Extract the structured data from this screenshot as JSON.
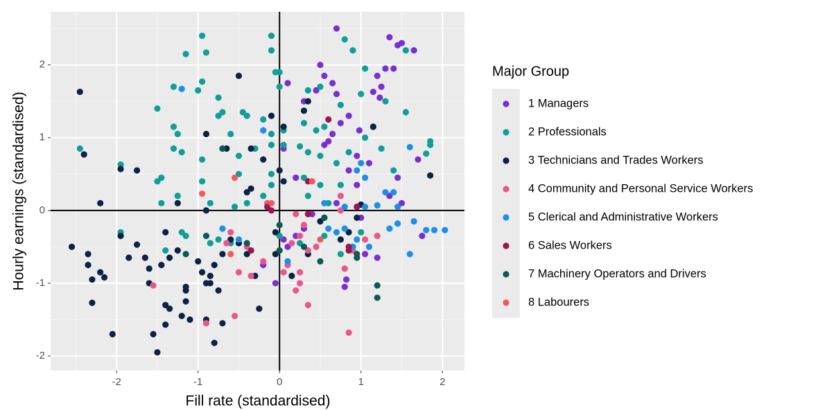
{
  "chart_data": {
    "type": "scatter",
    "x_label": "Fill rate (standardised)",
    "y_label": "Hourly earnings (standardised)",
    "legend_title": "Major Group",
    "legend": "right",
    "grid": true,
    "xlim": [
      -2.81,
      2.27
    ],
    "ylim": [
      -2.2,
      2.73
    ],
    "xticks": [
      -2,
      -1,
      0,
      1,
      2
    ],
    "yticks": [
      -2,
      -1,
      0,
      1,
      2
    ],
    "series": [
      {
        "name": "1 Managers",
        "color": "#7b2fd0",
        "x": [
          0.7,
          1.35,
          1.5,
          1.45,
          1.65,
          1.3,
          1.4,
          1.2,
          1.25,
          1.15,
          1.23,
          0.5,
          0.55,
          0.65,
          0.7,
          0.1,
          0.45,
          0.3,
          0.85,
          0.75,
          0.98,
          0.65,
          0.6,
          0.55,
          0.05,
          1.45,
          1.35,
          1.5,
          1.7,
          1.1,
          0.95,
          0.7,
          0.95,
          1.0,
          0.4,
          0.3,
          0.2,
          0.05,
          0.1,
          -0.2,
          -0.05,
          0.8,
          0.82,
          1.05,
          1.2,
          1.75,
          0.85,
          0.2,
          0.95
        ],
        "y": [
          2.5,
          2.38,
          2.3,
          2.27,
          2.2,
          1.95,
          1.95,
          1.85,
          1.7,
          1.63,
          1.55,
          2.0,
          1.85,
          1.75,
          1.6,
          1.75,
          1.65,
          1.5,
          1.3,
          1.2,
          1.1,
          1.05,
          0.95,
          0.9,
          0.85,
          0.45,
          0.2,
          0.1,
          0.7,
          0.65,
          0.35,
          0.1,
          0.05,
          -0.1,
          -0.05,
          -0.25,
          -0.35,
          -0.4,
          -0.5,
          -0.75,
          -1.0,
          -1.05,
          -0.95,
          -0.6,
          -0.65,
          -0.35,
          0.55,
          0.45,
          0.75
        ]
      },
      {
        "name": "2 Professionals",
        "color": "#109e98",
        "x": [
          -0.1,
          -0.95,
          -0.9,
          -1.15,
          0.8,
          0.9,
          -0.1,
          -0.95,
          -1.3,
          -1.0,
          -1.5,
          -0.75,
          0,
          -0.05,
          0,
          0.35,
          0.5,
          0.75,
          1.0,
          1.3,
          1.55,
          1.55,
          1.05,
          -0.7,
          -0.75,
          -0.45,
          -0.4,
          -0.2,
          -1.3,
          -1.25,
          -0.6,
          -0.1,
          0.05,
          0.3,
          0.45,
          0.55,
          1.15,
          -2.45,
          -1.95,
          -1.3,
          -1.2,
          -0.95,
          -0.7,
          -0.5,
          -0.3,
          -0.1,
          0.05,
          0.25,
          0.35,
          0.5,
          0.7,
          0.85,
          1.05,
          1.25,
          1.85,
          1.85,
          1.8,
          -1.45,
          -1.5,
          -1.25,
          -0.95,
          -0.5,
          -0.1,
          -0.1,
          0.3,
          0.5,
          0.75,
          1.4,
          -1.45,
          -0.85,
          -0.55,
          -0.4,
          -0.2,
          0.35,
          0.6,
          -1.95,
          -1.4,
          -1.2,
          -1.15,
          -0.85,
          -0.75,
          -0.6,
          0.0,
          0.25,
          0.75,
          0.55,
          1.0
        ],
        "y": [
          2.4,
          2.4,
          2.17,
          2.15,
          2.35,
          2.2,
          2.2,
          1.77,
          1.7,
          1.65,
          1.4,
          1.55,
          1.9,
          1.9,
          1.7,
          1.65,
          1.7,
          1.45,
          1.6,
          1.5,
          1.35,
          2.2,
          1.95,
          1.35,
          1.3,
          1.35,
          1.3,
          1.25,
          1.15,
          1.05,
          1.05,
          1.05,
          1.1,
          1.2,
          1.1,
          1.15,
          1.15,
          0.85,
          0.63,
          0.85,
          0.8,
          0.7,
          0.85,
          0.75,
          0.85,
          0.9,
          0.9,
          0.88,
          0.8,
          0.75,
          0.65,
          0.8,
          1.0,
          0.85,
          0.95,
          0.9,
          0.78,
          0.45,
          0.4,
          0.2,
          0.4,
          0.5,
          0.5,
          0.35,
          0.45,
          0.35,
          0.35,
          0.55,
          0.1,
          0.1,
          0.05,
          0.1,
          0.2,
          0.2,
          0.1,
          -0.3,
          -0.55,
          -0.3,
          -0.35,
          -0.45,
          -0.4,
          -0.45,
          -0.35,
          -0.45,
          -0.6,
          -0.35,
          -0.3
        ]
      },
      {
        "name": "3 Technicians and Trades Workers",
        "color": "#0c2346",
        "x": [
          -2.45,
          -2.4,
          -1.95,
          -1.75,
          -2.2,
          -1.25,
          -0.9,
          -0.5,
          -0.1,
          0.05,
          0.3,
          0.35,
          1.15,
          1.85,
          -0.65,
          -0.35,
          -0.2,
          0,
          0.05,
          -0.35,
          -0.4,
          -0.9,
          -2.55,
          -2.35,
          -2.35,
          -2.3,
          -2.3,
          -2.2,
          -2.15,
          -2.05,
          -1.95,
          -1.85,
          -1.75,
          -1.65,
          -1.6,
          -1.6,
          -1.55,
          -1.5,
          -1.45,
          -1.4,
          -1.35,
          -1.4,
          -1.35,
          -1.4,
          -1.25,
          -1.2,
          -1.15,
          -1.15,
          -1.15,
          -1.1,
          -1.0,
          -0.95,
          -0.9,
          -0.9,
          -0.85,
          -0.85,
          -0.8,
          -0.75,
          -0.7,
          -0.7,
          -0.8,
          -0.6,
          -0.5,
          -0.4,
          -0.3,
          -0.25,
          -0.05,
          -0.05,
          0.15,
          0.35,
          0.5,
          0.55,
          0.75,
          0.85,
          0.95,
          1.0
        ],
        "y": [
          1.63,
          0.77,
          0.57,
          0.55,
          0.1,
          0.1,
          1.05,
          1.85,
          1.3,
          1.15,
          1.37,
          1.5,
          1.15,
          0.48,
          0.85,
          0.85,
          0.7,
          0.55,
          0.4,
          0.3,
          0.25,
          0.0,
          -0.5,
          -0.6,
          -0.75,
          -0.95,
          -1.27,
          -0.85,
          -0.92,
          -1.7,
          -0.35,
          -0.65,
          -0.47,
          -0.65,
          -0.8,
          -1.0,
          -1.7,
          -1.95,
          -0.75,
          -0.3,
          -0.65,
          -1.3,
          -1.35,
          -1.57,
          -0.55,
          -1.45,
          -1.1,
          -1.05,
          -1.25,
          -1.5,
          -0.7,
          -0.85,
          -1.0,
          -1.5,
          -0.9,
          -1.0,
          -0.75,
          -1.1,
          -0.6,
          -1.55,
          -1.82,
          -0.4,
          -0.45,
          -0.6,
          -0.9,
          -1.35,
          -0.3,
          -0.6,
          -0.9,
          -0.6,
          -0.15,
          -0.1,
          -0.4,
          -0.3,
          -0.1,
          0.08
        ]
      },
      {
        "name": "4 Community and Personal Service Workers",
        "color": "#e9578a",
        "x": [
          -0.55,
          -0.9,
          -1.55,
          -0.65,
          -0.6,
          -0.4,
          -0.35,
          -0.2,
          -0.15,
          0.1,
          0.2,
          0.25,
          0.25,
          0.3,
          0.35,
          0.35,
          0.45,
          0.15,
          0.25,
          0.75,
          0.75,
          0.8,
          0.85,
          0.9,
          1.05,
          1.2,
          0.2,
          -0.5,
          0.05
        ],
        "y": [
          -1.45,
          -1.55,
          -1.03,
          -0.45,
          -0.3,
          -0.5,
          -0.9,
          -0.7,
          0.1,
          -0.75,
          -1.1,
          -0.85,
          -1.0,
          -0.2,
          -1.3,
          -0.55,
          -0.5,
          -0.45,
          -0.35,
          0.0,
          0.2,
          -0.8,
          -1.68,
          -0.55,
          -0.4,
          -0.35,
          -0.05,
          -0.85,
          -0.85
        ]
      },
      {
        "name": "5 Clerical and Administrative Workers",
        "color": "#1e8fe6",
        "x": [
          -1.2,
          -0.2,
          1.0,
          0.95,
          1.05,
          1.6,
          1.3,
          1.4,
          1.45,
          1.2,
          1.05,
          1.35,
          1.45,
          1.65,
          1.8,
          1.9,
          2.03,
          1.6,
          0.8,
          0.7,
          0.9,
          0.95,
          1.1,
          0.55,
          0.6,
          0.1,
          -0.7,
          -0.5,
          0.8
        ],
        "y": [
          1.67,
          1.1,
          0.65,
          0.55,
          0.45,
          0.87,
          0.25,
          0.25,
          0.05,
          0.07,
          0.05,
          -0.25,
          -0.18,
          -0.15,
          -0.27,
          -0.27,
          -0.27,
          -0.6,
          -0.25,
          -0.3,
          -0.5,
          -0.4,
          -0.5,
          0.1,
          -0.25,
          -0.7,
          -0.25,
          -0.4,
          0.05
        ]
      },
      {
        "name": "6 Sales Workers",
        "color": "#9b1650",
        "x": [
          0.6,
          0.95,
          0.85,
          0.85,
          -0.15,
          -0.1,
          0.35,
          0.35,
          -0.35
        ],
        "y": [
          1.25,
          0.05,
          -0.55,
          -0.5,
          0.05,
          0.0,
          -0.05,
          0.4,
          -0.55
        ]
      },
      {
        "name": "7 Machinery Operators and Drivers",
        "color": "#0b5a55",
        "x": [
          1.2,
          1.2,
          0.95,
          0.55,
          0.0,
          0.0,
          0.3,
          0.5,
          -0.7,
          -0.9,
          -1.15,
          -0.4,
          0.95
        ],
        "y": [
          -1.03,
          -1.2,
          -0.65,
          -0.1,
          -0.2,
          -0.55,
          -0.5,
          -0.7,
          0.85,
          -0.35,
          -0.6,
          -0.45,
          -0.6
        ]
      },
      {
        "name": "8 Labourers",
        "color": "#f25a5a",
        "x": [
          -0.95,
          -0.55,
          -0.6,
          -0.1,
          0.4,
          0.5
        ],
        "y": [
          0.23,
          0.45,
          -0.6,
          0.1,
          0.4,
          -0.4
        ]
      }
    ]
  }
}
